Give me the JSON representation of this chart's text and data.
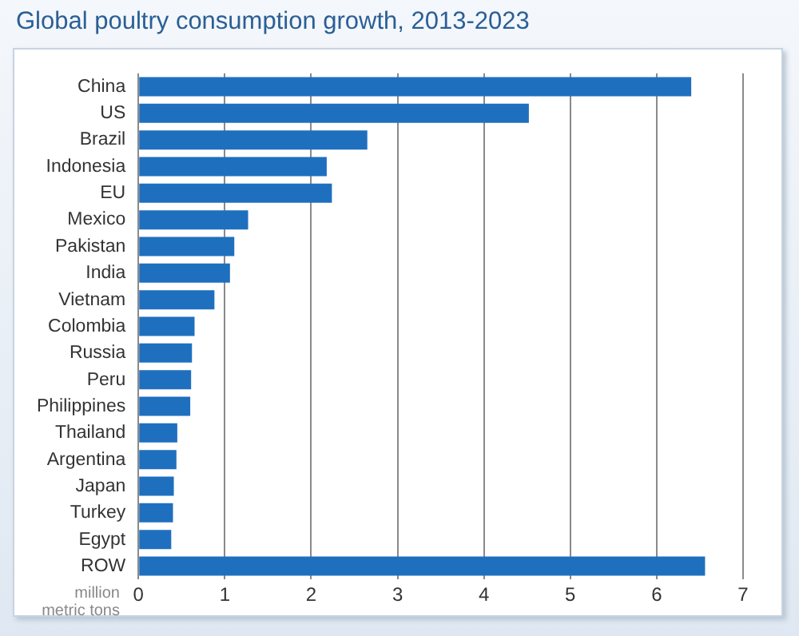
{
  "chart_data": {
    "type": "bar",
    "orientation": "horizontal",
    "title": "Global poultry consumption growth, 2013-2023",
    "xlabel": "million metric tons",
    "categories": [
      "China",
      "US",
      "Brazil",
      "Indonesia",
      "EU",
      "Mexico",
      "Pakistan",
      "India",
      "Vietnam",
      "Colombia",
      "Russia",
      "Peru",
      "Philippines",
      "Thailand",
      "Argentina",
      "Japan",
      "Turkey",
      "Egypt",
      "ROW"
    ],
    "values": [
      6.4,
      4.52,
      2.65,
      2.18,
      2.24,
      1.27,
      1.11,
      1.06,
      0.88,
      0.65,
      0.62,
      0.61,
      0.6,
      0.45,
      0.44,
      0.41,
      0.4,
      0.38,
      6.56
    ],
    "color": "#1f6fbf",
    "xlim": [
      0,
      7
    ],
    "xticks": [
      0,
      1,
      2,
      3,
      4,
      5,
      6,
      7
    ],
    "grid": "x"
  }
}
